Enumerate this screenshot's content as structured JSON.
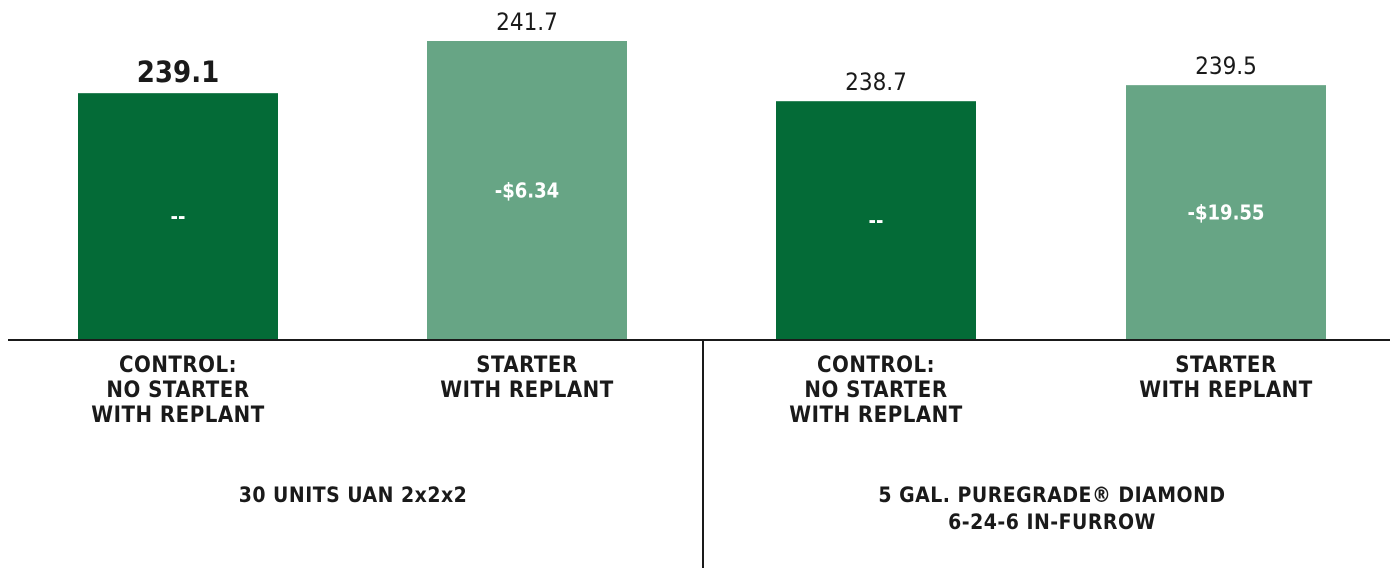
{
  "chart_data": {
    "type": "bar",
    "groups": [
      {
        "label_lines": [
          "30 UNITS UAN 2x2x2"
        ],
        "bars": [
          {
            "category_lines": [
              "CONTROL:",
              "NO STARTER",
              "WITH REPLANT"
            ],
            "value": 239.1,
            "value_label": "239.1",
            "inner_label": "--",
            "color": "#046b37",
            "emphasized": true
          },
          {
            "category_lines": [
              "STARTER",
              "WITH REPLANT"
            ],
            "value": 241.7,
            "value_label": "241.7",
            "inner_label": "-$6.34",
            "color": "#67a585",
            "emphasized": false
          }
        ]
      },
      {
        "label_lines": [
          "5 GAL. PUREGRADE® DIAMOND",
          "6-24-6 IN-FURROW"
        ],
        "bars": [
          {
            "category_lines": [
              "CONTROL:",
              "NO STARTER",
              "WITH REPLANT"
            ],
            "value": 238.7,
            "value_label": "238.7",
            "inner_label": "--",
            "color": "#046b37",
            "emphasized": false
          },
          {
            "category_lines": [
              "STARTER",
              "WITH REPLANT"
            ],
            "value": 239.5,
            "value_label": "239.5",
            "inner_label": "-$19.55",
            "color": "#67a585",
            "emphasized": false
          }
        ]
      }
    ],
    "ylim": [
      226.8,
      241.7
    ],
    "grid": false,
    "legend": "none",
    "axis_color": "#1a1a1a"
  }
}
